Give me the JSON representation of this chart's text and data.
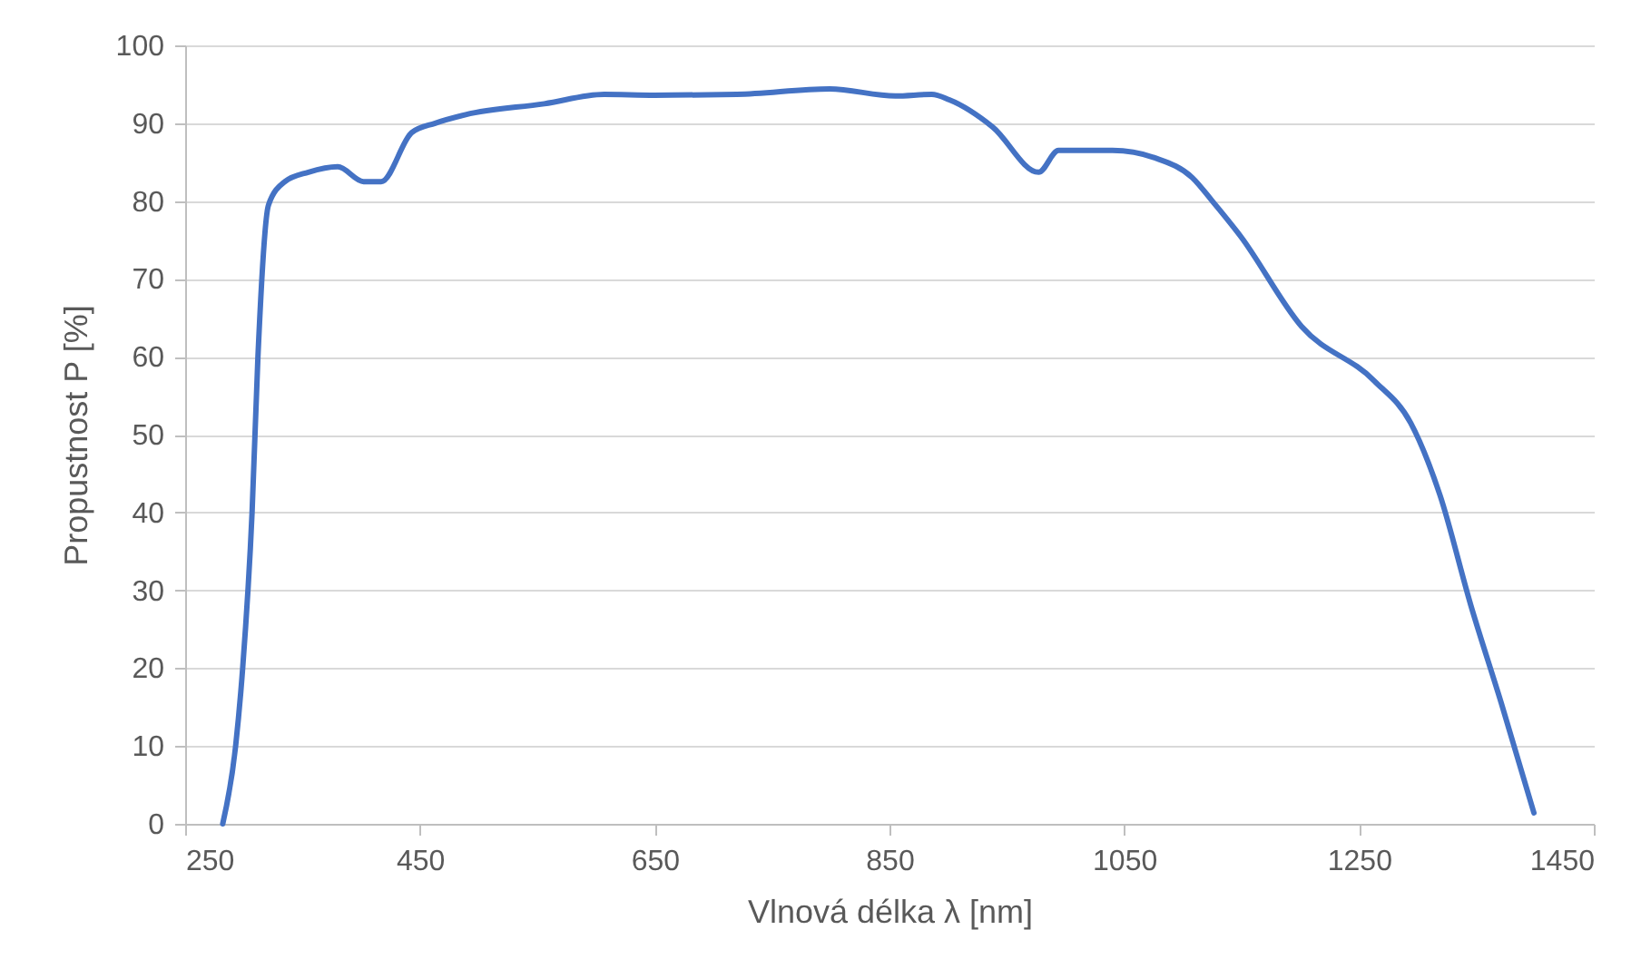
{
  "chart_data": {
    "type": "line",
    "xlabel": "Vlnová délka λ [nm]",
    "ylabel": "Propustnost P [%]",
    "xlim": [
      250,
      1450
    ],
    "xticks": [
      250,
      450,
      650,
      850,
      1050,
      1250,
      1450
    ],
    "ylim": [
      0,
      100
    ],
    "yticks": [
      0,
      10,
      20,
      30,
      40,
      50,
      60,
      70,
      80,
      90,
      100
    ],
    "grid": "y",
    "line_style": "solid",
    "series": [
      {
        "color": "#4472c4",
        "x": [
          282,
          293,
          299,
          307,
          312,
          321,
          335,
          355,
          380,
          402,
          417,
          443,
          463,
          489,
          556,
          607,
          650,
          720,
          799,
          855,
          886,
          901,
          938,
          977,
          994,
          1040,
          1077,
          1108,
          1125,
          1149,
          1201,
          1263,
          1294,
          1319,
          1345,
          1371,
          1399
        ],
        "values": [
          0,
          10,
          20,
          40,
          60,
          79.5,
          82.5,
          83.7,
          84.4,
          82.5,
          82.5,
          88.8,
          90,
          91.1,
          92.5,
          93.7,
          93.6,
          93.7,
          94.4,
          93.5,
          93.7,
          93,
          89.5,
          83.7,
          86.5,
          86.5,
          85.5,
          83,
          80,
          75.5,
          63.9,
          56.9,
          51.5,
          42.2,
          28.2,
          15.6,
          1.4
        ]
      }
    ]
  }
}
